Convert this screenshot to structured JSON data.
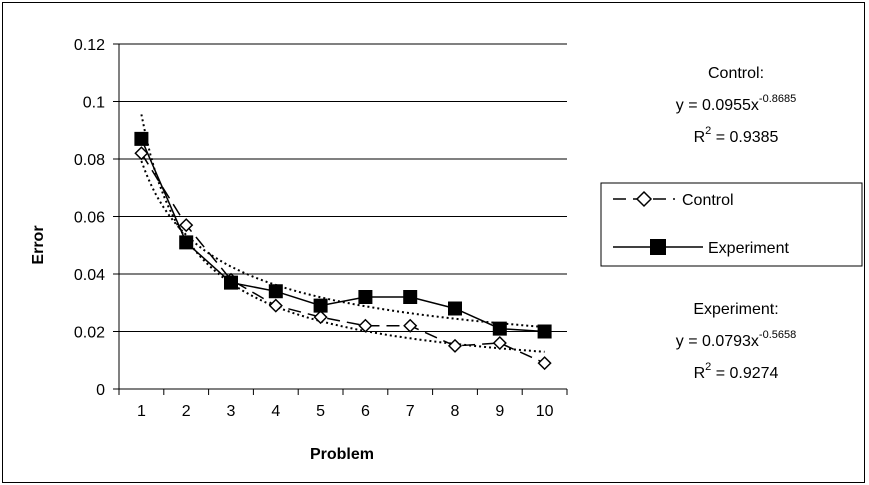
{
  "chart_data": {
    "type": "line",
    "title": "",
    "xlabel": "Problem",
    "ylabel": "Error",
    "categories": [
      "1",
      "2",
      "3",
      "4",
      "5",
      "6",
      "7",
      "8",
      "9",
      "10"
    ],
    "y_ticks": [
      "0",
      "0.02",
      "0.04",
      "0.06",
      "0.08",
      "0.1",
      "0.12"
    ],
    "ylim": [
      0,
      0.12
    ],
    "grid": "horizontal",
    "legend_position": "right",
    "series": [
      {
        "name": "Control",
        "values": [
          0.082,
          0.057,
          0.038,
          0.029,
          0.025,
          0.022,
          0.022,
          0.015,
          0.016,
          0.009
        ],
        "line_style": "dashed",
        "marker": "open-diamond",
        "color": "#000000"
      },
      {
        "name": "Experiment",
        "values": [
          0.087,
          0.051,
          0.037,
          0.034,
          0.029,
          0.032,
          0.032,
          0.028,
          0.021,
          0.02
        ],
        "line_style": "solid",
        "marker": "filled-square",
        "color": "#000000"
      }
    ],
    "trendlines": [
      {
        "series": "Control",
        "type": "power",
        "a": 0.0955,
        "b": -0.8685,
        "style": "dotted"
      },
      {
        "series": "Experiment",
        "type": "power",
        "a": 0.0793,
        "b": -0.5658,
        "style": "dotted"
      }
    ],
    "annotations": {
      "control": {
        "heading": "Control:",
        "eq_base": "y = 0.0955x",
        "eq_exp": "-0.8685",
        "r2_base": "R",
        "r2_sup": "2",
        "r2_value": " = 0.9385"
      },
      "experiment": {
        "heading": "Experiment:",
        "eq_base": "y = 0.0793x",
        "eq_exp": "-0.5658",
        "r2_base": "R",
        "r2_sup": "2",
        "r2_value": " = 0.9274"
      }
    }
  }
}
